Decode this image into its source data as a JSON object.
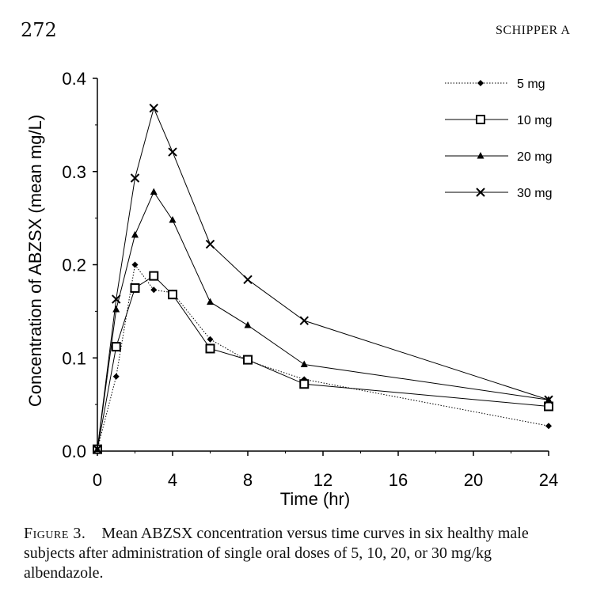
{
  "header": {
    "page_number": "272",
    "running_head": "SCHIPPER A"
  },
  "caption": {
    "label": "Figure 3.",
    "text": "Mean ABZSX concentration versus time curves in six healthy male subjects after administration of single oral doses of 5, 10, 20, or 30 mg/kg albendazole."
  },
  "chart_data": {
    "type": "line",
    "title": "",
    "xlabel": "Time (hr)",
    "ylabel": "Concentration of ABZSX (mean mg/L)",
    "xlim": [
      0,
      24
    ],
    "ylim": [
      0,
      0.4
    ],
    "x_ticks": [
      "0",
      "4",
      "8",
      "12",
      "16",
      "20",
      "24"
    ],
    "y_ticks": [
      "0.0",
      "0.1",
      "0.2",
      "0.3",
      "0.4"
    ],
    "grid": false,
    "legend_position": "top-right",
    "x": [
      0,
      1,
      2,
      3,
      4,
      6,
      8,
      11,
      24
    ],
    "series": [
      {
        "name": "5 mg",
        "marker": "diamond",
        "line": "dotted",
        "values": [
          0.002,
          0.08,
          0.2,
          0.173,
          0.17,
          0.12,
          0.097,
          0.077,
          0.027
        ]
      },
      {
        "name": "10 mg",
        "marker": "square-open",
        "line": "solid",
        "values": [
          0.002,
          0.112,
          0.175,
          0.188,
          0.168,
          0.11,
          0.098,
          0.072,
          0.048
        ]
      },
      {
        "name": "20 mg",
        "marker": "triangle",
        "line": "solid",
        "values": [
          0.002,
          0.152,
          0.232,
          0.278,
          0.248,
          0.16,
          0.135,
          0.093,
          0.055
        ]
      },
      {
        "name": "30 mg",
        "marker": "x",
        "line": "solid",
        "values": [
          0.002,
          0.163,
          0.293,
          0.368,
          0.321,
          0.222,
          0.184,
          0.14,
          0.055
        ]
      }
    ]
  }
}
